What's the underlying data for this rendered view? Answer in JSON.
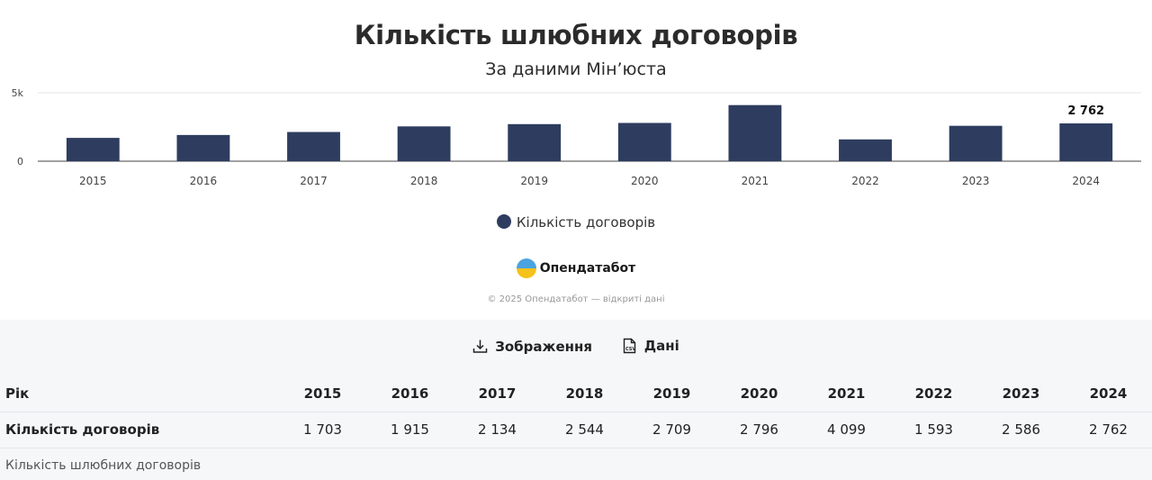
{
  "chart_data": {
    "type": "bar",
    "title": "Кількість шлюбних договорів",
    "subtitle": "За даними Мін’юста",
    "categories": [
      "2015",
      "2016",
      "2017",
      "2018",
      "2019",
      "2020",
      "2021",
      "2022",
      "2023",
      "2024"
    ],
    "series": [
      {
        "name": "Кількість договорів",
        "values": [
          1703,
          1915,
          2134,
          2544,
          2709,
          2796,
          4099,
          1593,
          2586,
          2762
        ],
        "color": "#2e3d5f"
      }
    ],
    "ylim": [
      0,
      5000
    ],
    "y_ticks": [
      {
        "value": 0,
        "label": "0"
      },
      {
        "value": 5000,
        "label": "5k"
      }
    ],
    "data_labels": [
      {
        "category": "2024",
        "label": "2 762"
      }
    ],
    "legend_position": "bottom-center",
    "grid": true
  },
  "legend": {
    "label": "Кількість договорів",
    "color": "#2e3d5f"
  },
  "brand": {
    "name": "Опендатабот",
    "icon": "opendatabot-logo-icon"
  },
  "copyright": "© 2025 Опендатабот — відкриті дані",
  "actions": {
    "image_label": "Зображення",
    "data_label": "Дані"
  },
  "table": {
    "header_label": "Рік",
    "row_label": "Кількість договорів",
    "years": [
      "2015",
      "2016",
      "2017",
      "2018",
      "2019",
      "2020",
      "2021",
      "2022",
      "2023",
      "2024"
    ],
    "values": [
      "1 703",
      "1 915",
      "2 134",
      "2 544",
      "2 709",
      "2 796",
      "4 099",
      "1 593",
      "2 586",
      "2 762"
    ]
  },
  "caption": "Кількість шлюбних договорів"
}
